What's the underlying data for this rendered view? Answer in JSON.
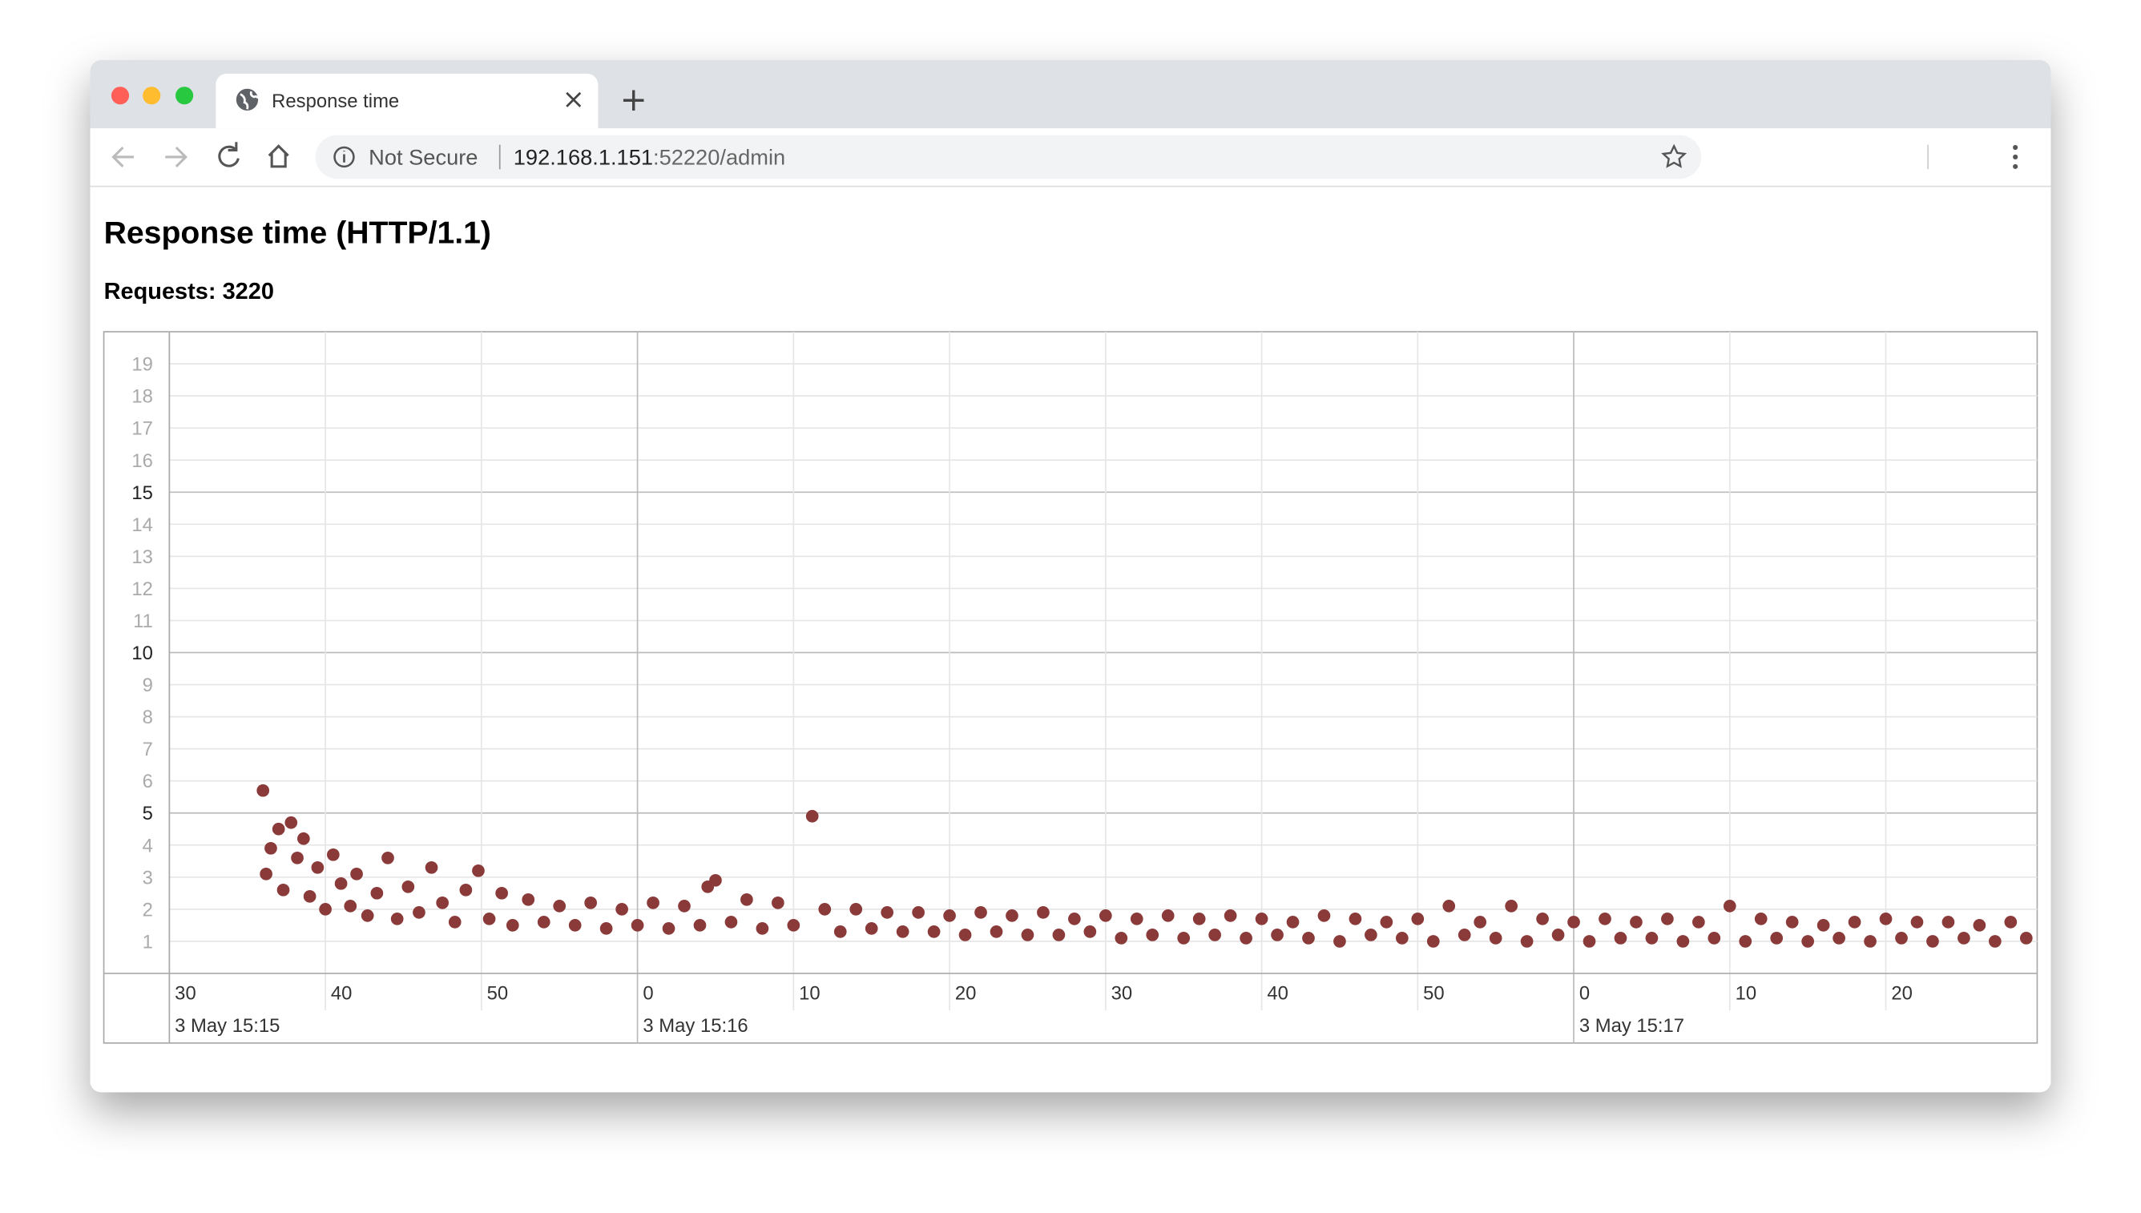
{
  "browser": {
    "tab_title": "Response time",
    "security": "Not Secure",
    "url_host": "192.168.1.151",
    "url_rest": ":52220/admin"
  },
  "page": {
    "heading": "Response time (HTTP/1.1)",
    "subheading": "Requests: 3220"
  },
  "chart_data": {
    "type": "scatter",
    "color": "#8b3a3a",
    "grid": true,
    "xlim": [
      30,
      149.7
    ],
    "ylim": [
      0,
      20
    ],
    "yticks": [
      1,
      2,
      3,
      4,
      5,
      6,
      7,
      8,
      9,
      10,
      11,
      12,
      13,
      14,
      15,
      16,
      17,
      18,
      19
    ],
    "ytick_major_every": 5,
    "xticks": [
      30,
      40,
      50,
      {
        "value": 60,
        "label": "0"
      },
      {
        "value": 70,
        "label": "10"
      },
      {
        "value": 80,
        "label": "20"
      },
      {
        "value": 90,
        "label": "30"
      },
      {
        "value": 100,
        "label": "40"
      },
      {
        "value": 110,
        "label": "50"
      },
      {
        "value": 120,
        "label": "0"
      },
      {
        "value": 130,
        "label": "10"
      },
      {
        "value": 140,
        "label": "20"
      }
    ],
    "xtick_dates": [
      {
        "value": 30,
        "label": "3 May 15:15"
      },
      {
        "value": 60,
        "label": "3 May 15:16"
      },
      {
        "value": 120,
        "label": "3 May 15:17"
      }
    ],
    "x": [
      36,
      36.2,
      36.5,
      37,
      37.3,
      37.8,
      38.2,
      38.6,
      39,
      39.5,
      40,
      40.5,
      41,
      41.6,
      42,
      42.7,
      43.3,
      44,
      44.6,
      45.3,
      46,
      46.8,
      47.5,
      48.3,
      49,
      49.8,
      50.5,
      51.3,
      52,
      53,
      54,
      55,
      56,
      57,
      58,
      59,
      60,
      61,
      62,
      63,
      64,
      64.5,
      65,
      66,
      67,
      68,
      69,
      70,
      71.2,
      72,
      73,
      74,
      75,
      76,
      77,
      78,
      79,
      80,
      81,
      82,
      83,
      84,
      85,
      86,
      87,
      88,
      89,
      90,
      91,
      92,
      93,
      94,
      95,
      96,
      97,
      98,
      99,
      100,
      101,
      102,
      103,
      104,
      105,
      106,
      107,
      108,
      109,
      110,
      111,
      112,
      113,
      114,
      115,
      116,
      117,
      118,
      119,
      120,
      121,
      122,
      123,
      124,
      125,
      126,
      127,
      128,
      129,
      130,
      131,
      132,
      133,
      134,
      135,
      136,
      137,
      138,
      139,
      140,
      141,
      142,
      143,
      144,
      145,
      146,
      147,
      148,
      149
    ],
    "values": [
      5.7,
      3.1,
      3.9,
      4.5,
      2.6,
      4.7,
      3.6,
      4.2,
      2.4,
      3.3,
      2.0,
      3.7,
      2.8,
      2.1,
      3.1,
      1.8,
      2.5,
      3.6,
      1.7,
      2.7,
      1.9,
      3.3,
      2.2,
      1.6,
      2.6,
      3.2,
      1.7,
      2.5,
      1.5,
      2.3,
      1.6,
      2.1,
      1.5,
      2.2,
      1.4,
      2.0,
      1.5,
      2.2,
      1.4,
      2.1,
      1.5,
      2.7,
      2.9,
      1.6,
      2.3,
      1.4,
      2.2,
      1.5,
      4.9,
      2.0,
      1.3,
      2.0,
      1.4,
      1.9,
      1.3,
      1.9,
      1.3,
      1.8,
      1.2,
      1.9,
      1.3,
      1.8,
      1.2,
      1.9,
      1.2,
      1.7,
      1.3,
      1.8,
      1.1,
      1.7,
      1.2,
      1.8,
      1.1,
      1.7,
      1.2,
      1.8,
      1.1,
      1.7,
      1.2,
      1.6,
      1.1,
      1.8,
      1.0,
      1.7,
      1.2,
      1.6,
      1.1,
      1.7,
      1.0,
      2.1,
      1.2,
      1.6,
      1.1,
      2.1,
      1.0,
      1.7,
      1.2,
      1.6,
      1.0,
      1.7,
      1.1,
      1.6,
      1.1,
      1.7,
      1.0,
      1.6,
      1.1,
      2.1,
      1.0,
      1.7,
      1.1,
      1.6,
      1.0,
      1.5,
      1.1,
      1.6,
      1.0,
      1.7,
      1.1,
      1.6,
      1.0,
      1.6,
      1.1,
      1.5,
      1.0,
      1.6,
      1.1
    ]
  }
}
